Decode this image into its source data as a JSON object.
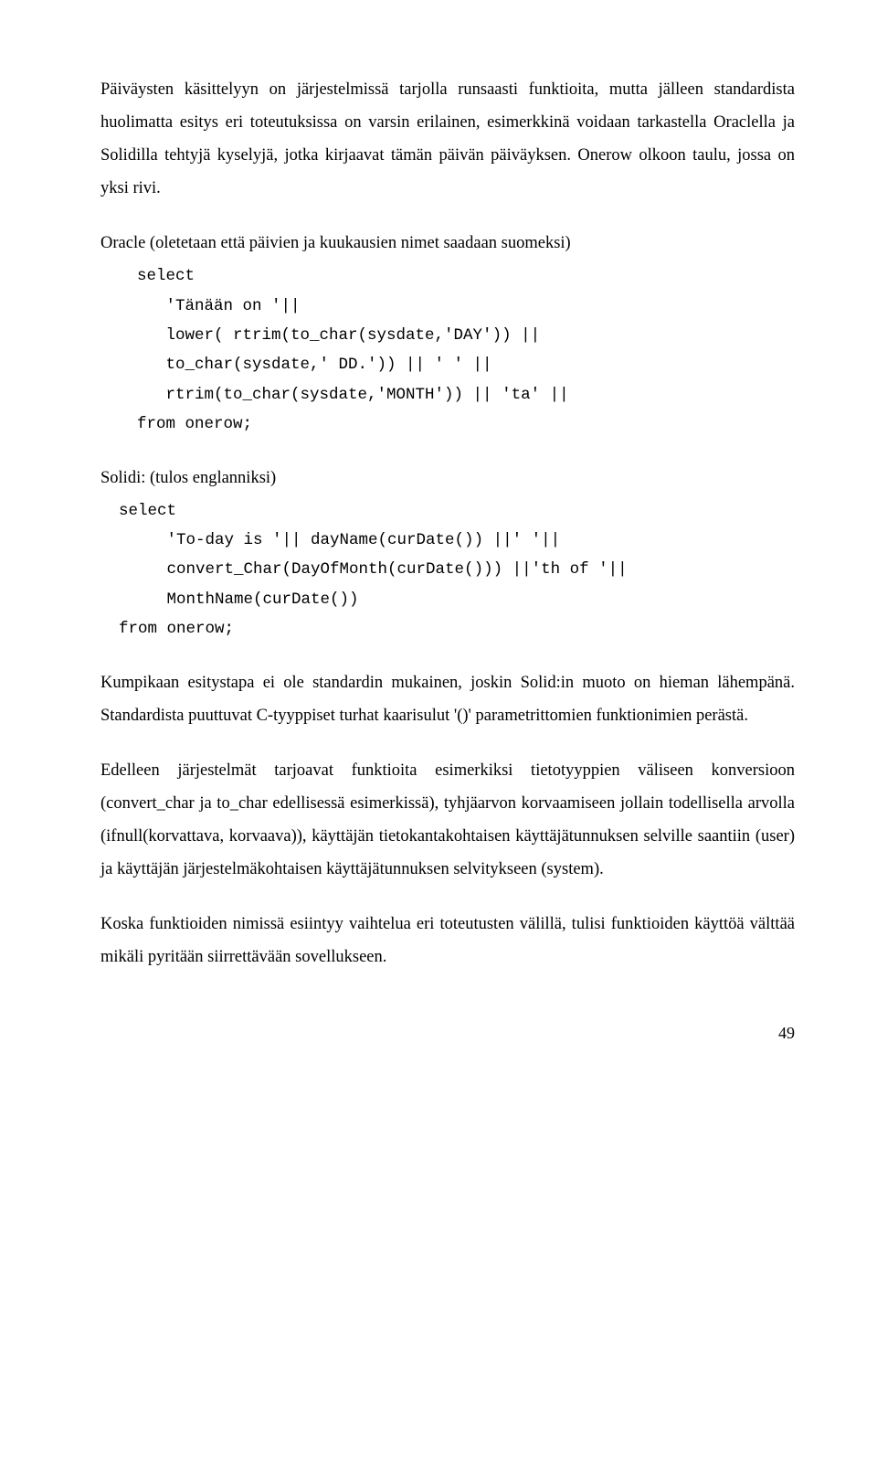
{
  "para1": "Päiväysten käsittelyyn on järjestelmissä tarjolla runsaasti funktioita, mutta jälleen standardista huolimatta esitys eri toteutuksissa on varsin erilainen, esimerkkinä voidaan tarkastella Oraclella ja Solidilla tehtyjä kyselyjä, jotka kirjaavat tämän päivän päiväyksen. Onerow olkoon taulu, jossa on yksi rivi.",
  "oracleIntro": "Oracle (oletetaan että päivien ja kuukausien  nimet saadaan suomeksi)",
  "oracleCode": "select\n   'Tänään on '||\n   lower( rtrim(to_char(sysdate,'DAY')) ||\n   to_char(sysdate,' DD.')) || ' ' ||\n   rtrim(to_char(sysdate,'MONTH')) || 'ta' ||\nfrom onerow;",
  "solidiIntro": "Solidi: (tulos englanniksi)",
  "solidiCode": "select\n     'To-day is '|| dayName(curDate()) ||' '||\n     convert_Char(DayOfMonth(curDate())) ||'th of '||\n     MonthName(curDate())\nfrom onerow;",
  "para2": "Kumpikaan esitystapa ei ole standardin mukainen, joskin Solid:in muoto on hieman lähempänä. Standardista puuttuvat C-tyyppiset  turhat kaarisulut '()' parametrittomien funktionimien perästä.",
  "para3": "Edelleen järjestelmät tarjoavat funktioita esimerkiksi tietotyyppien väliseen konversioon (convert_char ja to_char edellisessä esimerkissä), tyhjäarvon korvaamiseen jollain todellisella arvolla (ifnull(korvattava, korvaava)),   käyttäjän tietokantakohtaisen käyttäjätunnuksen selville saantiin (user) ja käyttäjän järjestelmäkohtaisen käyttäjätunnuksen selvitykseen (system).",
  "para4": "Koska funktioiden nimissä esiintyy vaihtelua eri toteutusten välillä, tulisi funktioiden käyttöä välttää mikäli pyritään siirrettävään sovellukseen.",
  "pageNumber": "49"
}
